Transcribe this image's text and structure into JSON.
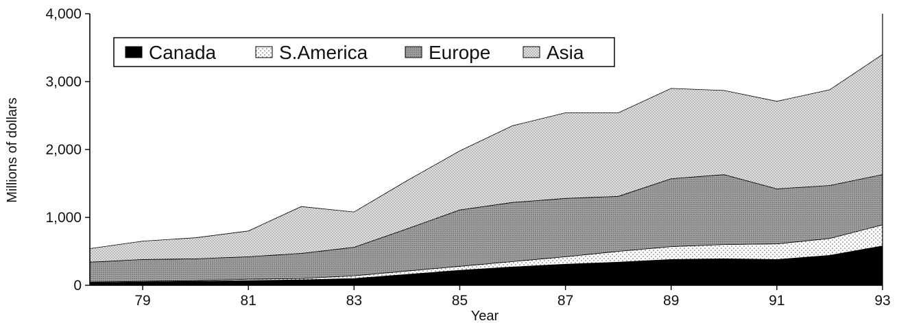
{
  "chart_data": {
    "type": "area",
    "stacked": true,
    "xlabel": "Year",
    "ylabel": "Millions of dollars",
    "x": [
      78,
      79,
      80,
      81,
      82,
      83,
      84,
      85,
      86,
      87,
      88,
      89,
      90,
      91,
      92,
      93
    ],
    "xticks": [
      79,
      81,
      83,
      85,
      87,
      89,
      91,
      93
    ],
    "xtick_labels": [
      "79",
      "81",
      "83",
      "85",
      "87",
      "89",
      "91",
      "93"
    ],
    "xlim": [
      78,
      93
    ],
    "yticks": [
      0,
      1000,
      2000,
      3000,
      4000
    ],
    "ytick_labels": [
      "0",
      "1,000",
      "2,000",
      "3,000",
      "4,000"
    ],
    "ylim": [
      0,
      4000
    ],
    "legend_position": "top-left",
    "series": [
      {
        "name": "Canada",
        "values": [
          40,
          50,
          60,
          70,
          80,
          100,
          160,
          220,
          270,
          310,
          340,
          380,
          390,
          380,
          440,
          580
        ],
        "color": "#000000",
        "pattern": "solid"
      },
      {
        "name": "S.America",
        "values": [
          10,
          10,
          10,
          20,
          20,
          40,
          50,
          60,
          80,
          110,
          160,
          190,
          210,
          230,
          250,
          310
        ],
        "color": "#ffffff",
        "pattern": "sparse-dots"
      },
      {
        "name": "Europe",
        "values": [
          290,
          320,
          320,
          330,
          370,
          420,
          620,
          830,
          870,
          860,
          810,
          1000,
          1030,
          810,
          780,
          740
        ],
        "color": "#9a9a9a",
        "pattern": "dense-dots"
      },
      {
        "name": "Asia",
        "values": [
          200,
          270,
          310,
          380,
          690,
          520,
          710,
          870,
          1130,
          1260,
          1230,
          1330,
          1240,
          1290,
          1410,
          1770
        ],
        "color": "#dddddd",
        "pattern": "fine-dots"
      }
    ]
  }
}
